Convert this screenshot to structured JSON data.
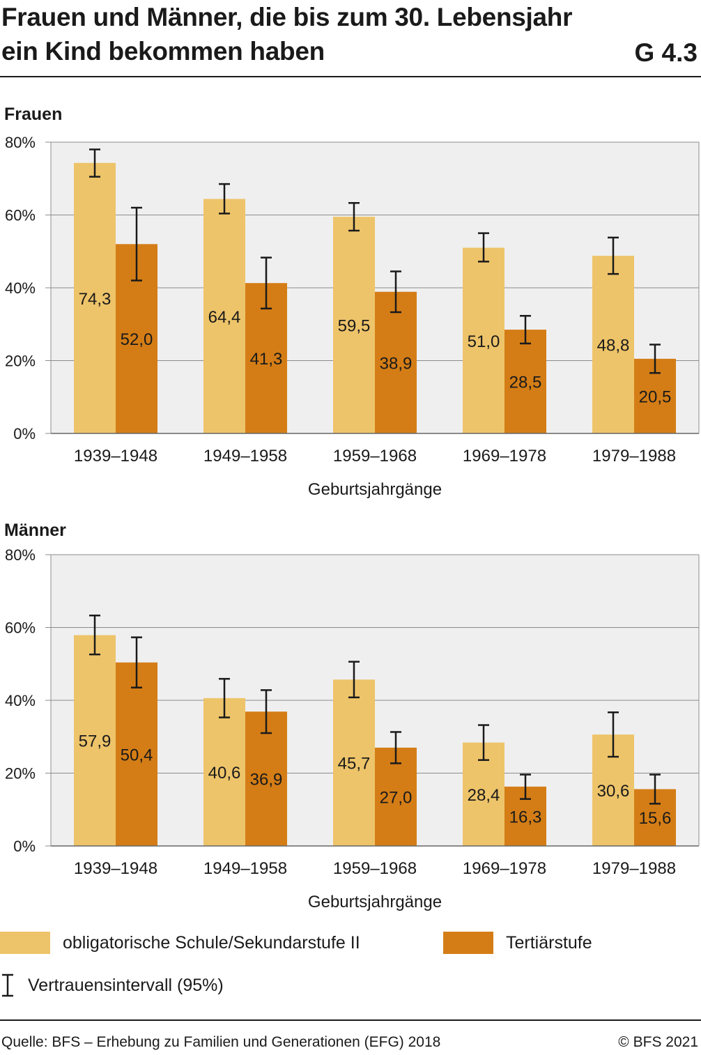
{
  "header": {
    "title_line1": "Frauen und Männer, die bis zum 30. Lebensjahr",
    "title_line2": "ein Kind bekommen haben",
    "code": "G 4.3"
  },
  "colors": {
    "obligatorisch": "#eec46a",
    "tertiaer": "#d47d16",
    "plot_bg": "#efefef",
    "grid": "#8c8c8c"
  },
  "legend": {
    "series1": "obligatorische Schule/Sekundarstufe II",
    "series2": "Tertiärstufe",
    "ci": "Vertrauensintervall (95%)"
  },
  "footer": {
    "source": "Quelle: BFS – Erhebung zu Familien und Generationen (EFG) 2018",
    "copyright": "© BFS 2021"
  },
  "chart_data": [
    {
      "type": "bar",
      "panel_title": "Frauen",
      "xlabel": "Geburtsjahrgänge",
      "ylim": [
        0,
        80
      ],
      "yticks": [
        "0%",
        "20%",
        "40%",
        "60%",
        "80%"
      ],
      "categories": [
        "1939–1948",
        "1949–1958",
        "1959–1968",
        "1969–1978",
        "1979–1988"
      ],
      "series": [
        {
          "name": "obligatorische Schule/Sekundarstufe II",
          "values": [
            74.3,
            64.4,
            59.5,
            51.0,
            48.8
          ],
          "labels": [
            "74,3",
            "64,4",
            "59,5",
            "51,0",
            "48,8"
          ],
          "ci": [
            [
              70.5,
              78.0
            ],
            [
              60.4,
              68.5
            ],
            [
              55.7,
              63.3
            ],
            [
              47.2,
              55.0
            ],
            [
              43.8,
              53.8
            ]
          ]
        },
        {
          "name": "Tertiärstufe",
          "values": [
            52.0,
            41.3,
            38.9,
            28.5,
            20.5
          ],
          "labels": [
            "52,0",
            "41,3",
            "38,9",
            "28,5",
            "20,5"
          ],
          "ci": [
            [
              42.0,
              62.0
            ],
            [
              34.3,
              48.3
            ],
            [
              33.3,
              44.5
            ],
            [
              24.7,
              32.3
            ],
            [
              16.6,
              24.4
            ]
          ]
        }
      ]
    },
    {
      "type": "bar",
      "panel_title": "Männer",
      "xlabel": "Geburtsjahrgänge",
      "ylim": [
        0,
        80
      ],
      "yticks": [
        "0%",
        "20%",
        "40%",
        "60%",
        "80%"
      ],
      "categories": [
        "1939–1948",
        "1949–1958",
        "1959–1968",
        "1969–1978",
        "1979–1988"
      ],
      "series": [
        {
          "name": "obligatorische Schule/Sekundarstufe II",
          "values": [
            57.9,
            40.6,
            45.7,
            28.4,
            30.6
          ],
          "labels": [
            "57,9",
            "40,6",
            "45,7",
            "28,4",
            "30,6"
          ],
          "ci": [
            [
              52.6,
              63.3
            ],
            [
              35.3,
              45.9
            ],
            [
              40.8,
              50.6
            ],
            [
              23.6,
              33.2
            ],
            [
              24.5,
              36.7
            ]
          ]
        },
        {
          "name": "Tertiärstufe",
          "values": [
            50.4,
            36.9,
            27.0,
            16.3,
            15.6
          ],
          "labels": [
            "50,4",
            "36,9",
            "27,0",
            "16,3",
            "15,6"
          ],
          "ci": [
            [
              43.5,
              57.3
            ],
            [
              31.0,
              42.8
            ],
            [
              22.7,
              31.3
            ],
            [
              12.9,
              19.6
            ],
            [
              11.6,
              19.6
            ]
          ]
        }
      ]
    }
  ]
}
